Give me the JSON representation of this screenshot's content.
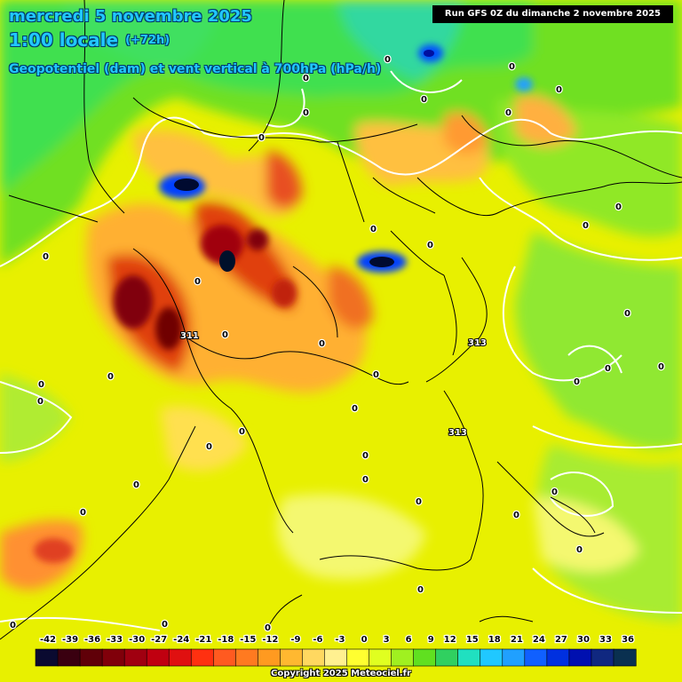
{
  "header": {
    "date_line": "mercredi 5 novembre 2025",
    "time_line": "1:00 locale",
    "lead_time": "(+72h)",
    "parameter": "Geopotentiel (dam) et vent vertical à 700hPa (hPa/h)"
  },
  "run_info": "Run GFS 0Z du dimanche 2 novembre 2025",
  "copyright": "Copyright 2025 Meteociel.fr",
  "palette": {
    "background_yellow": "#e8f000",
    "yellow_light": "#f4f870",
    "green": "#78e020",
    "green_bright": "#40e040",
    "cyan_green": "#30d8a0",
    "cyan": "#20c0ff",
    "blue": "#0060ff",
    "navy": "#000a40",
    "orange": "#ffb030",
    "red": "#e03010",
    "dark_red": "#700000",
    "border_color": "#000000",
    "contour_color": "#ffffff"
  },
  "scale": {
    "labels": [
      "-42",
      "-39",
      "-36",
      "-33",
      "-30",
      "-27",
      "-24",
      "-21",
      "-18",
      "-15",
      "-12",
      "-9",
      "-6",
      "-3",
      "0",
      "3",
      "6",
      "9",
      "12",
      "15",
      "18",
      "21",
      "24",
      "27",
      "30",
      "33",
      "36"
    ],
    "colors": [
      "#0a0a30",
      "#3a0010",
      "#600008",
      "#80000a",
      "#a00010",
      "#c00010",
      "#e01010",
      "#ff3010",
      "#ff5a20",
      "#ff7a20",
      "#ff9a20",
      "#ffb830",
      "#ffd860",
      "#fff090",
      "#ffff30",
      "#e0ff20",
      "#a0f020",
      "#60e020",
      "#30d060",
      "#20e0c0",
      "#20c8ff",
      "#20a0ff",
      "#1060ff",
      "#0030e0",
      "#0010b0",
      "#102880",
      "#0a3050"
    ]
  },
  "contour_labels": [
    {
      "text": "0"
    },
    {
      "text": "0"
    },
    {
      "text": "0"
    },
    {
      "text": "0"
    },
    {
      "text": "0"
    },
    {
      "text": "0"
    },
    {
      "text": "0"
    },
    {
      "text": "0"
    },
    {
      "text": "0"
    },
    {
      "text": "0"
    },
    {
      "text": "0"
    },
    {
      "text": "0"
    },
    {
      "text": "0"
    },
    {
      "text": "0"
    },
    {
      "text": "0"
    },
    {
      "text": "0"
    },
    {
      "text": "0"
    },
    {
      "text": "0"
    },
    {
      "text": "0"
    },
    {
      "text": "0"
    },
    {
      "text": "0"
    },
    {
      "text": "0"
    },
    {
      "text": "0"
    },
    {
      "text": "0"
    },
    {
      "text": "0"
    },
    {
      "text": "0"
    },
    {
      "text": "0"
    },
    {
      "text": "0"
    },
    {
      "text": "0"
    },
    {
      "text": "0"
    },
    {
      "text": "0"
    },
    {
      "text": "0"
    },
    {
      "text": "0"
    },
    {
      "text": "0"
    },
    {
      "text": "0"
    },
    {
      "text": "0"
    },
    {
      "text": "0"
    },
    {
      "text": "0"
    },
    {
      "text": "0"
    }
  ],
  "geopotential_labels": [
    "311",
    "313",
    "313"
  ]
}
